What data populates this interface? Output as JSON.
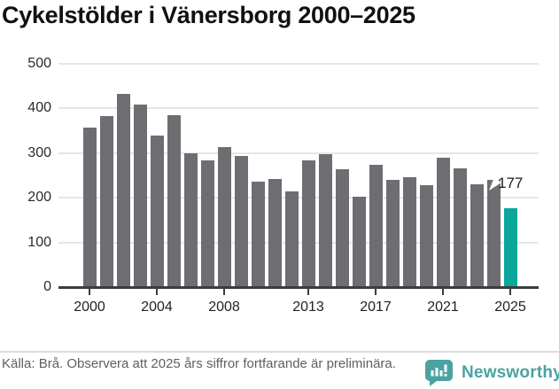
{
  "title": "Cykelstölder i Vänersborg 2000–2025",
  "chart_data": {
    "type": "bar",
    "title": "Cykelstölder i Vänersborg 2000–2025",
    "categories": [
      2000,
      2001,
      2002,
      2003,
      2004,
      2005,
      2006,
      2007,
      2008,
      2009,
      2010,
      2011,
      2012,
      2013,
      2014,
      2015,
      2016,
      2017,
      2018,
      2019,
      2020,
      2021,
      2022,
      2023,
      2024,
      2025
    ],
    "values": [
      357,
      383,
      431,
      408,
      338,
      385,
      299,
      283,
      312,
      294,
      236,
      242,
      213,
      283,
      297,
      264,
      201,
      273,
      240,
      245,
      227,
      290,
      266,
      229,
      239,
      177
    ],
    "xlabel": "",
    "ylabel": "",
    "ylim": [
      0,
      500
    ],
    "y_ticks": [
      0,
      100,
      200,
      300,
      400,
      500
    ],
    "x_ticks": [
      2000,
      2004,
      2008,
      2013,
      2017,
      2021,
      2025
    ],
    "grid": "horizontal",
    "legend": "none",
    "bar_color": "#6e6d72",
    "grid_color": "#e6e6e6",
    "axis_color": "#3d3d3d",
    "highlight": {
      "category": 2025,
      "color": "#0ca79c",
      "label": "177"
    }
  },
  "footer": {
    "source_note": "Källa: Brå. Observera att 2025 års siffror fortfarande är preliminära."
  },
  "branding": {
    "name": "Newsworthy",
    "color": "#4ba3a1",
    "icon": "newsworthy-speech-bubble-barchart-icon"
  }
}
